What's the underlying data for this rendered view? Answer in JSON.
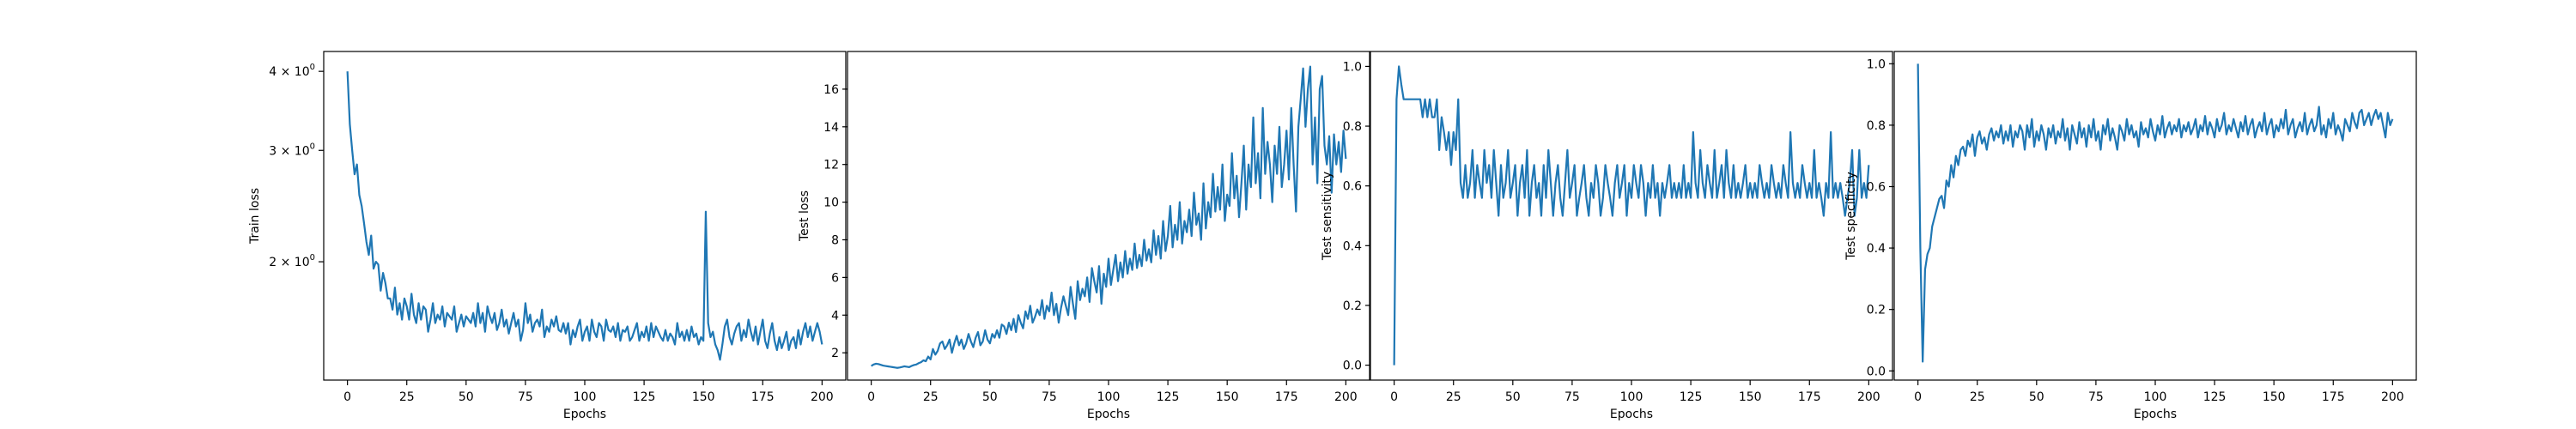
{
  "chart_data": [
    {
      "type": "line",
      "xlabel": "Epochs",
      "ylabel": "Train loss",
      "yscale": "log",
      "xlim": [
        -10,
        210
      ],
      "ylim": [
        1.3,
        4.3
      ],
      "xticks": [
        0,
        25,
        50,
        75,
        100,
        125,
        150,
        175,
        200
      ],
      "yticks": [
        {
          "value": 2,
          "base": "2",
          "exp": "0"
        },
        {
          "value": 3,
          "base": "3",
          "exp": "0"
        },
        {
          "value": 4,
          "base": "4",
          "exp": "0"
        }
      ],
      "series": [
        {
          "color": "#1f77b4",
          "x_start": 0,
          "x_step": 1,
          "values": [
            4.0,
            3.3,
            3.0,
            2.75,
            2.85,
            2.55,
            2.45,
            2.3,
            2.15,
            2.05,
            2.2,
            1.95,
            2.0,
            1.98,
            1.8,
            1.92,
            1.85,
            1.75,
            1.75,
            1.68,
            1.82,
            1.65,
            1.72,
            1.62,
            1.75,
            1.7,
            1.62,
            1.78,
            1.65,
            1.6,
            1.72,
            1.62,
            1.7,
            1.68,
            1.55,
            1.62,
            1.72,
            1.6,
            1.65,
            1.62,
            1.7,
            1.58,
            1.66,
            1.64,
            1.62,
            1.7,
            1.55,
            1.6,
            1.65,
            1.58,
            1.64,
            1.62,
            1.6,
            1.66,
            1.58,
            1.72,
            1.6,
            1.66,
            1.55,
            1.7,
            1.64,
            1.6,
            1.66,
            1.56,
            1.6,
            1.68,
            1.58,
            1.62,
            1.54,
            1.6,
            1.66,
            1.58,
            1.62,
            1.5,
            1.56,
            1.72,
            1.6,
            1.65,
            1.55,
            1.6,
            1.62,
            1.58,
            1.68,
            1.52,
            1.58,
            1.55,
            1.62,
            1.58,
            1.64,
            1.56,
            1.55,
            1.6,
            1.54,
            1.6,
            1.48,
            1.56,
            1.52,
            1.58,
            1.62,
            1.5,
            1.55,
            1.58,
            1.5,
            1.62,
            1.55,
            1.52,
            1.6,
            1.58,
            1.5,
            1.62,
            1.56,
            1.55,
            1.58,
            1.52,
            1.6,
            1.5,
            1.56,
            1.55,
            1.58,
            1.5,
            1.52,
            1.56,
            1.6,
            1.5,
            1.55,
            1.52,
            1.58,
            1.5,
            1.6,
            1.52,
            1.58,
            1.55,
            1.52,
            1.5,
            1.56,
            1.5,
            1.54,
            1.52,
            1.48,
            1.6,
            1.52,
            1.55,
            1.5,
            1.56,
            1.5,
            1.58,
            1.52,
            1.54,
            1.48,
            1.52,
            1.5,
            2.4,
            1.6,
            1.52,
            1.55,
            1.48,
            1.45,
            1.4,
            1.48,
            1.58,
            1.62,
            1.52,
            1.48,
            1.54,
            1.58,
            1.6,
            1.5,
            1.56,
            1.52,
            1.62,
            1.55,
            1.5,
            1.58,
            1.48,
            1.55,
            1.62,
            1.5,
            1.46,
            1.54,
            1.6,
            1.5,
            1.45,
            1.52,
            1.46,
            1.5,
            1.55,
            1.45,
            1.5,
            1.52,
            1.46,
            1.56,
            1.48,
            1.55,
            1.6,
            1.52,
            1.58,
            1.5,
            1.55,
            1.6,
            1.55,
            1.48
          ]
        }
      ]
    },
    {
      "type": "line",
      "xlabel": "Epochs",
      "ylabel": "Test loss",
      "xlim": [
        -10,
        210
      ],
      "ylim": [
        0.55,
        18.0
      ],
      "xticks": [
        0,
        25,
        50,
        75,
        100,
        125,
        150,
        175,
        200
      ],
      "yticks": [
        2,
        4,
        6,
        8,
        10,
        12,
        14,
        16
      ],
      "series": [
        {
          "color": "#1f77b4",
          "x_start": 0,
          "x_step": 1,
          "values": [
            1.3,
            1.38,
            1.42,
            1.4,
            1.36,
            1.32,
            1.3,
            1.28,
            1.26,
            1.24,
            1.22,
            1.2,
            1.22,
            1.25,
            1.28,
            1.26,
            1.24,
            1.3,
            1.35,
            1.38,
            1.45,
            1.5,
            1.6,
            1.55,
            1.8,
            1.65,
            2.2,
            1.9,
            2.1,
            2.5,
            2.6,
            2.2,
            2.4,
            2.7,
            2.0,
            2.5,
            2.9,
            2.4,
            2.7,
            2.2,
            2.5,
            3.0,
            2.6,
            2.3,
            2.8,
            3.1,
            2.4,
            2.6,
            3.2,
            2.7,
            2.5,
            3.0,
            2.8,
            3.2,
            2.8,
            3.5,
            3.4,
            3.0,
            3.6,
            3.2,
            3.8,
            3.1,
            4.0,
            3.6,
            3.3,
            4.2,
            3.8,
            4.5,
            3.6,
            3.9,
            4.3,
            4.0,
            4.8,
            3.8,
            4.5,
            4.2,
            5.2,
            4.0,
            4.6,
            3.6,
            4.4,
            5.0,
            4.5,
            4.0,
            5.5,
            4.6,
            3.8,
            5.8,
            4.8,
            5.4,
            5.0,
            6.0,
            4.7,
            6.5,
            5.8,
            5.2,
            6.6,
            4.6,
            6.2,
            5.5,
            7.0,
            5.6,
            6.4,
            7.2,
            5.8,
            6.8,
            6.0,
            7.4,
            6.2,
            7.0,
            6.4,
            7.8,
            6.5,
            7.2,
            6.6,
            8.0,
            6.9,
            7.5,
            6.8,
            8.5,
            7.2,
            8.2,
            7.0,
            9.0,
            7.4,
            8.2,
            9.8,
            7.6,
            8.8,
            8.0,
            10.0,
            7.8,
            9.0,
            8.4,
            9.6,
            8.2,
            10.5,
            8.8,
            9.4,
            8.0,
            11.0,
            8.6,
            10.0,
            9.2,
            11.5,
            9.5,
            10.8,
            9.6,
            12.0,
            9.0,
            10.4,
            9.8,
            12.6,
            10.2,
            11.4,
            9.2,
            11.0,
            13.0,
            9.6,
            12.0,
            10.8,
            14.5,
            11.0,
            12.6,
            10.2,
            15.0,
            11.5,
            13.2,
            12.0,
            10.0,
            13.0,
            11.5,
            14.0,
            10.8,
            12.0,
            13.8,
            11.2,
            15.0,
            12.0,
            9.5,
            14.0,
            15.5,
            17.1,
            14.0,
            16.0,
            17.2,
            12.0,
            14.5,
            11.0,
            16.0,
            16.7,
            13.0,
            12.0,
            13.5,
            10.5,
            13.6,
            12.0,
            13.2,
            11.6,
            13.8,
            12.3
          ]
        }
      ]
    },
    {
      "type": "line",
      "xlabel": "Epochs",
      "ylabel": "Test sensitivity",
      "xlim": [
        -10,
        210
      ],
      "ylim": [
        -0.05,
        1.05
      ],
      "xticks": [
        0,
        25,
        50,
        75,
        100,
        125,
        150,
        175,
        200
      ],
      "yticks": [
        "0.0",
        "0.2",
        "0.4",
        "0.6",
        "0.8",
        "1.0"
      ],
      "series": [
        {
          "color": "#1f77b4",
          "x_start": 0,
          "x_step": 1,
          "values": [
            0.0,
            0.89,
            1.0,
            0.94,
            0.89,
            0.89,
            0.89,
            0.89,
            0.89,
            0.89,
            0.89,
            0.89,
            0.83,
            0.89,
            0.83,
            0.89,
            0.83,
            0.83,
            0.89,
            0.72,
            0.83,
            0.78,
            0.72,
            0.78,
            0.67,
            0.78,
            0.72,
            0.89,
            0.61,
            0.56,
            0.67,
            0.56,
            0.61,
            0.72,
            0.56,
            0.67,
            0.61,
            0.56,
            0.72,
            0.61,
            0.67,
            0.56,
            0.72,
            0.61,
            0.5,
            0.67,
            0.56,
            0.61,
            0.72,
            0.56,
            0.61,
            0.67,
            0.5,
            0.61,
            0.67,
            0.56,
            0.72,
            0.5,
            0.61,
            0.67,
            0.56,
            0.61,
            0.5,
            0.67,
            0.56,
            0.72,
            0.61,
            0.5,
            0.61,
            0.67,
            0.56,
            0.5,
            0.61,
            0.72,
            0.56,
            0.61,
            0.67,
            0.5,
            0.56,
            0.61,
            0.67,
            0.56,
            0.5,
            0.61,
            0.56,
            0.67,
            0.61,
            0.5,
            0.56,
            0.67,
            0.61,
            0.56,
            0.5,
            0.61,
            0.67,
            0.56,
            0.61,
            0.67,
            0.5,
            0.61,
            0.56,
            0.67,
            0.61,
            0.56,
            0.67,
            0.61,
            0.5,
            0.61,
            0.56,
            0.67,
            0.56,
            0.61,
            0.5,
            0.61,
            0.56,
            0.61,
            0.67,
            0.56,
            0.61,
            0.56,
            0.61,
            0.56,
            0.67,
            0.56,
            0.61,
            0.56,
            0.78,
            0.61,
            0.56,
            0.72,
            0.61,
            0.56,
            0.67,
            0.61,
            0.56,
            0.72,
            0.56,
            0.61,
            0.67,
            0.56,
            0.72,
            0.61,
            0.56,
            0.67,
            0.56,
            0.61,
            0.56,
            0.61,
            0.67,
            0.56,
            0.61,
            0.56,
            0.61,
            0.56,
            0.67,
            0.61,
            0.56,
            0.61,
            0.56,
            0.67,
            0.61,
            0.56,
            0.61,
            0.56,
            0.67,
            0.61,
            0.56,
            0.78,
            0.61,
            0.56,
            0.61,
            0.56,
            0.67,
            0.61,
            0.56,
            0.61,
            0.56,
            0.72,
            0.56,
            0.61,
            0.56,
            0.5,
            0.61,
            0.56,
            0.78,
            0.56,
            0.61,
            0.56,
            0.61,
            0.56,
            0.5,
            0.56,
            0.61,
            0.72,
            0.5,
            0.56,
            0.72,
            0.56,
            0.61,
            0.56,
            0.67
          ]
        }
      ]
    },
    {
      "type": "line",
      "xlabel": "Epochs",
      "ylabel": "Test specificity",
      "xlim": [
        -10,
        210
      ],
      "ylim": [
        -0.03,
        1.04
      ],
      "xticks": [
        0,
        25,
        50,
        75,
        100,
        125,
        150,
        175,
        200
      ],
      "yticks": [
        "0.0",
        "0.2",
        "0.4",
        "0.6",
        "0.8",
        "1.0"
      ],
      "series": [
        {
          "color": "#1f77b4",
          "x_start": 0,
          "x_step": 1,
          "values": [
            1.0,
            0.4,
            0.03,
            0.33,
            0.38,
            0.4,
            0.47,
            0.5,
            0.53,
            0.56,
            0.57,
            0.53,
            0.62,
            0.6,
            0.67,
            0.63,
            0.7,
            0.67,
            0.72,
            0.73,
            0.7,
            0.75,
            0.73,
            0.77,
            0.7,
            0.76,
            0.78,
            0.74,
            0.76,
            0.72,
            0.77,
            0.79,
            0.75,
            0.78,
            0.76,
            0.8,
            0.74,
            0.78,
            0.75,
            0.8,
            0.73,
            0.78,
            0.76,
            0.8,
            0.78,
            0.72,
            0.8,
            0.76,
            0.82,
            0.73,
            0.78,
            0.75,
            0.8,
            0.77,
            0.72,
            0.79,
            0.76,
            0.8,
            0.74,
            0.78,
            0.76,
            0.82,
            0.75,
            0.79,
            0.72,
            0.8,
            0.77,
            0.74,
            0.81,
            0.76,
            0.79,
            0.73,
            0.8,
            0.76,
            0.82,
            0.75,
            0.78,
            0.72,
            0.8,
            0.77,
            0.82,
            0.75,
            0.79,
            0.76,
            0.72,
            0.8,
            0.78,
            0.75,
            0.82,
            0.77,
            0.8,
            0.76,
            0.78,
            0.73,
            0.81,
            0.77,
            0.79,
            0.76,
            0.82,
            0.78,
            0.75,
            0.8,
            0.77,
            0.83,
            0.76,
            0.79,
            0.81,
            0.77,
            0.8,
            0.78,
            0.82,
            0.76,
            0.8,
            0.78,
            0.81,
            0.77,
            0.79,
            0.82,
            0.76,
            0.8,
            0.78,
            0.83,
            0.77,
            0.81,
            0.79,
            0.76,
            0.82,
            0.78,
            0.8,
            0.84,
            0.77,
            0.8,
            0.78,
            0.82,
            0.79,
            0.76,
            0.81,
            0.78,
            0.83,
            0.77,
            0.8,
            0.82,
            0.76,
            0.79,
            0.81,
            0.78,
            0.84,
            0.77,
            0.8,
            0.82,
            0.76,
            0.8,
            0.78,
            0.82,
            0.79,
            0.85,
            0.77,
            0.8,
            0.82,
            0.76,
            0.79,
            0.81,
            0.78,
            0.84,
            0.77,
            0.8,
            0.82,
            0.78,
            0.8,
            0.86,
            0.77,
            0.8,
            0.76,
            0.82,
            0.79,
            0.84,
            0.77,
            0.8,
            0.78,
            0.75,
            0.82,
            0.8,
            0.78,
            0.84,
            0.81,
            0.79,
            0.84,
            0.85,
            0.8,
            0.82,
            0.84,
            0.8,
            0.83,
            0.85,
            0.82,
            0.84,
            0.8,
            0.76,
            0.84,
            0.8,
            0.82
          ]
        }
      ]
    }
  ]
}
